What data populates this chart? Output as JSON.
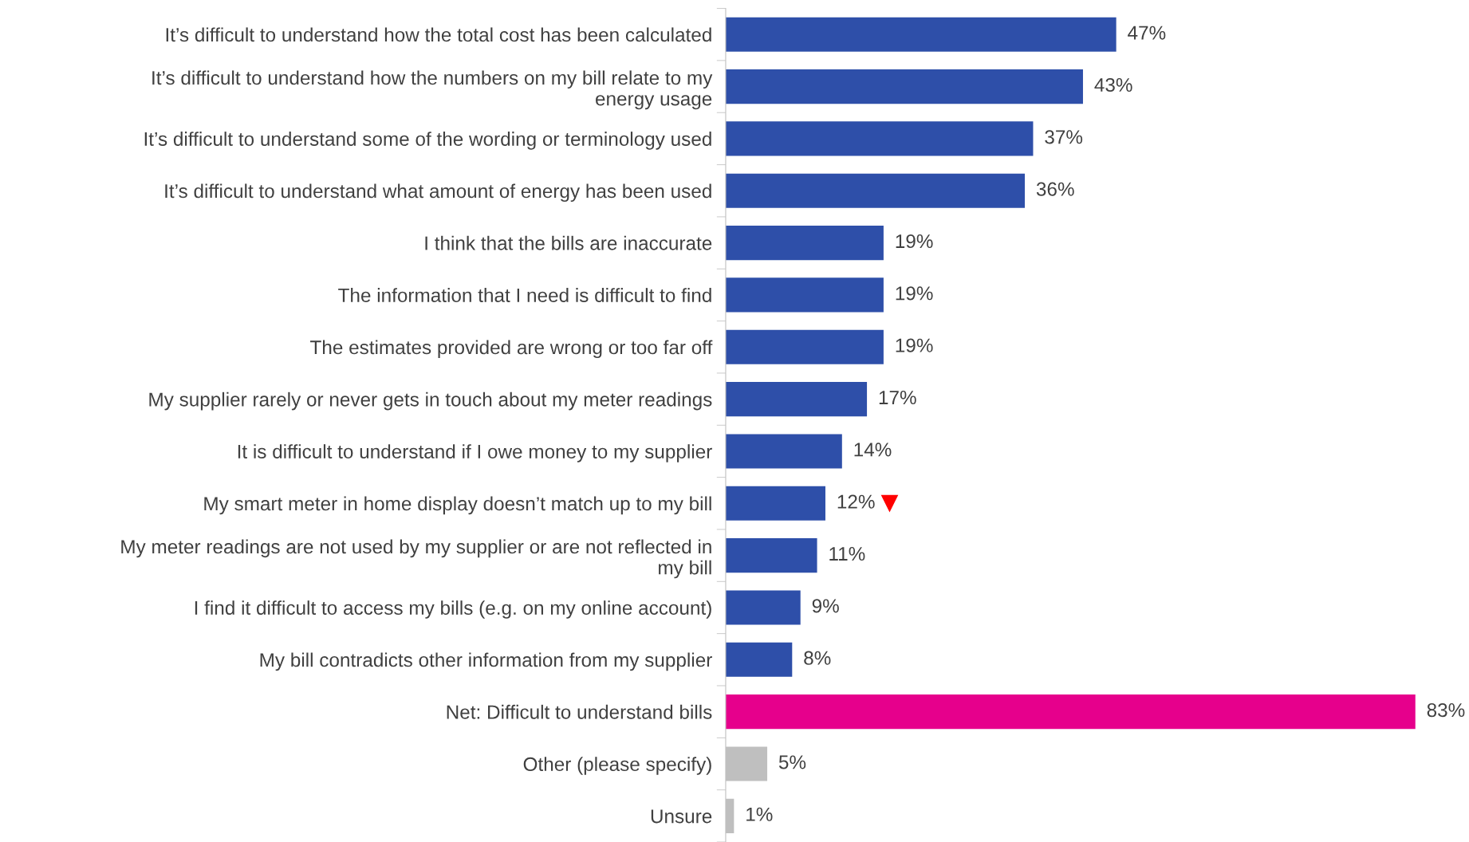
{
  "chart_data": {
    "type": "bar",
    "orientation": "horizontal",
    "categories": [
      "It’s difficult to understand how the total cost has been calculated",
      "It’s difficult to understand how the numbers on my bill relate to my\nenergy usage",
      "It’s difficult to understand some of the wording or terminology used",
      "It’s difficult to understand what amount of energy has been used",
      "I think that the bills are inaccurate",
      "The information that I need is difficult to find",
      "The estimates provided are wrong or too far off",
      "My supplier rarely or never gets in touch about my meter readings",
      "It is difficult to understand if I owe money to my supplier",
      "My smart meter in home display doesn’t match up to my bill",
      "My meter readings are not used by my supplier or are not reflected in\nmy bill",
      "I find it difficult to access my bills (e.g. on my online account)",
      "My bill contradicts other information from my supplier",
      "Net: Difficult to understand bills",
      "Other (please specify)",
      "Unsure"
    ],
    "values": [
      47,
      43,
      37,
      36,
      19,
      19,
      19,
      17,
      14,
      12,
      11,
      9,
      8,
      83,
      5,
      1
    ],
    "colors": [
      "#2e4fa9",
      "#2e4fa9",
      "#2e4fa9",
      "#2e4fa9",
      "#2e4fa9",
      "#2e4fa9",
      "#2e4fa9",
      "#2e4fa9",
      "#2e4fa9",
      "#2e4fa9",
      "#2e4fa9",
      "#2e4fa9",
      "#2e4fa9",
      "#e6008c",
      "#bfbfbf",
      "#bfbfbf"
    ],
    "value_labels": [
      "47%",
      "43%",
      "37%",
      "36%",
      "19%",
      "19%",
      "19%",
      "17%",
      "14%",
      "12%",
      "11%",
      "9%",
      "8%",
      "83%",
      "5%",
      "1%"
    ],
    "tick_labels": "y",
    "grid": false
  }
}
